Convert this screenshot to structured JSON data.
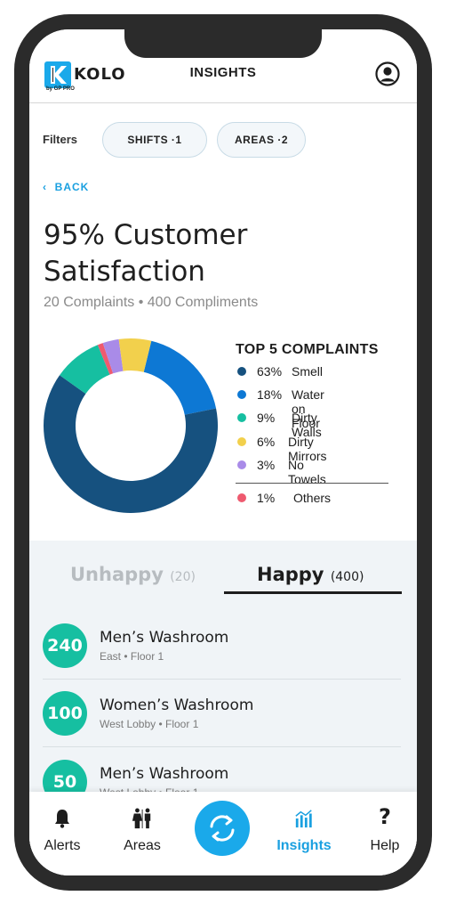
{
  "header": {
    "logo_text": "KOLO",
    "logo_sub": "by GP PRO",
    "title": "INSIGHTS",
    "account_icon": "account-circle-icon"
  },
  "filters": {
    "label": "Filters",
    "chips": [
      {
        "label": "SHIFTS ·1"
      },
      {
        "label": "AREAS ·2"
      }
    ]
  },
  "nav": {
    "back_label": "BACK",
    "back_icon": "chevron-left-icon"
  },
  "summary": {
    "headline_line1": "95% Customer",
    "headline_line2": "Satisfaction",
    "subline": "20 Complaints • 400 Compliments"
  },
  "complaints": {
    "title": "TOP 5 COMPLAINTS",
    "items": [
      {
        "pct": "63%",
        "label": "Smell",
        "value": 63,
        "color": "#16517f"
      },
      {
        "pct": "18%",
        "label": "Water on Floor",
        "value": 18,
        "color": "#0d78d4"
      },
      {
        "pct": "9%",
        "label": "Dirty Walls",
        "value": 9,
        "color": "#16bfa1"
      },
      {
        "pct": "6%",
        "label": "Dirty Mirrors",
        "value": 6,
        "color": "#f2d04c"
      },
      {
        "pct": "3%",
        "label": "No Towels",
        "value": 3,
        "color": "#a98be8"
      }
    ],
    "other": {
      "pct": "1%",
      "label": "Others",
      "value": 1,
      "color": "#ee5a6f"
    }
  },
  "tabs": [
    {
      "label": "Unhappy",
      "count": "(20)",
      "active": false
    },
    {
      "label": "Happy",
      "count": "(400)",
      "active": true
    }
  ],
  "locations": [
    {
      "count": "240",
      "name": "Men’s Washroom",
      "detail": "East • Floor 1"
    },
    {
      "count": "100",
      "name": "Women’s Washroom",
      "detail": "West Lobby • Floor 1"
    },
    {
      "count": "50",
      "name": "Men’s Washroom",
      "detail": "West Lobby • Floor 1"
    }
  ],
  "tabbar": {
    "items": [
      {
        "label": "Alerts",
        "icon": "bell-icon"
      },
      {
        "label": "Areas",
        "icon": "restroom-icon"
      },
      {
        "label": "Insights",
        "icon": "bar-chart-icon",
        "active": true
      },
      {
        "label": "Help",
        "icon": "question-icon"
      }
    ],
    "center_icon": "sync-icon"
  },
  "colors": {
    "accent": "#1aa9ea",
    "teal": "#16bfa1",
    "dark": "#1d1d1d"
  }
}
